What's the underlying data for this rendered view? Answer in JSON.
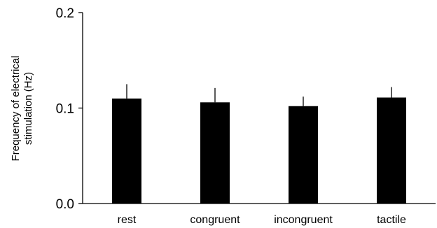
{
  "chart_data": {
    "type": "bar",
    "title": "",
    "xlabel": "",
    "ylabel": [
      "Frequency of electrical",
      "stimulation (Hz)"
    ],
    "categories": [
      "rest",
      "congruent",
      "incongruent",
      "tactile"
    ],
    "values": [
      0.11,
      0.106,
      0.102,
      0.111
    ],
    "error": [
      0.015,
      0.015,
      0.01,
      0.011
    ],
    "ylim": [
      0.0,
      0.2
    ],
    "yticks": [
      "0.0",
      "0.1",
      "0.2"
    ],
    "grid": false,
    "legend": "none",
    "colors": {
      "bar": "#000000",
      "axis": "#000000"
    }
  }
}
